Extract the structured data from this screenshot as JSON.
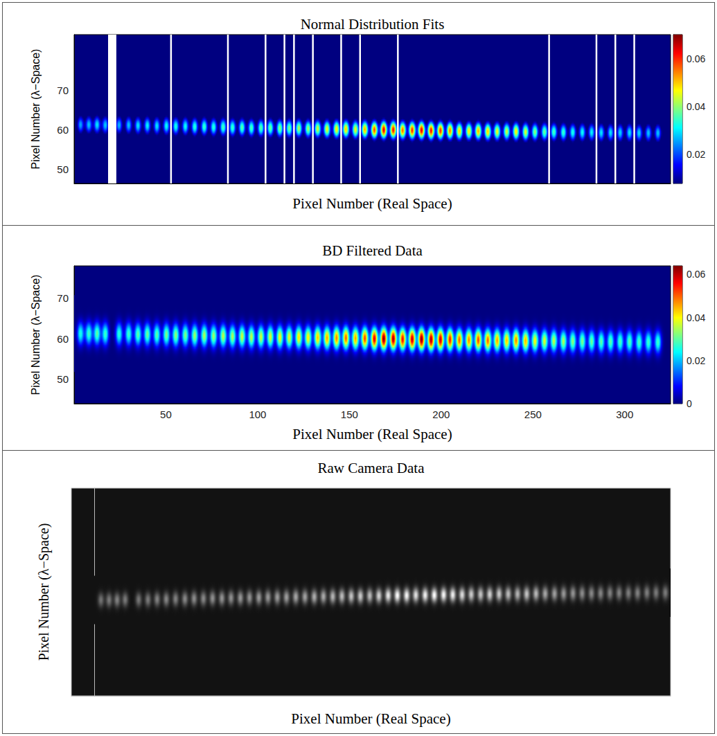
{
  "chart_data": [
    {
      "type": "heatmap",
      "title": "Normal Distribution Fits",
      "x_label": "Pixel Number (Real Space)",
      "y_label": "Pixel Number (λ−Space)",
      "xlim": [
        0,
        325
      ],
      "ylim": [
        46.5,
        84
      ],
      "yticks": [
        50,
        60,
        70
      ],
      "tick_labels": "y",
      "color": "jet",
      "color_range": [
        0.008,
        0.07
      ],
      "color_ticks": [
        0.02,
        0.04,
        0.06
      ],
      "spots": {
        "x": [
          3.5,
          8,
          12.5,
          17,
          24.5,
          29.7,
          34.8,
          39.9,
          45.1,
          50.3,
          55.4,
          60.6,
          65.7,
          70.9,
          76.0,
          81.2,
          86.3,
          91.5,
          96.6,
          101.8,
          106.9,
          112.1,
          117.2,
          122.4,
          127.5,
          132.7,
          137.8,
          143.0,
          148.1,
          153.3,
          158.4,
          163.6,
          168.7,
          173.9,
          179.0,
          184.2,
          189.3,
          194.5,
          199.6,
          204.8,
          209.9,
          215.1,
          220.2,
          225.4,
          230.5,
          235.7,
          240.8,
          246.0,
          251.1,
          256.3,
          261.4,
          266.6,
          271.7,
          276.9,
          282.0,
          287.2,
          292.3,
          297.5,
          302.6,
          307.8,
          312.9,
          318.1
        ],
        "y": [
          61.3,
          61.3,
          61.3,
          61.2,
          61.2,
          61.2,
          61.1,
          61.1,
          61.0,
          61.0,
          60.9,
          60.9,
          60.8,
          60.8,
          60.7,
          60.7,
          60.6,
          60.6,
          60.5,
          60.5,
          60.5,
          60.4,
          60.4,
          60.4,
          60.3,
          60.3,
          60.2,
          60.2,
          60.2,
          60.1,
          60.1,
          60.0,
          60.0,
          60.0,
          59.9,
          59.9,
          59.9,
          59.8,
          59.8,
          59.8,
          59.7,
          59.7,
          59.7,
          59.6,
          59.6,
          59.6,
          59.6,
          59.5,
          59.5,
          59.5,
          59.5,
          59.4,
          59.4,
          59.4,
          59.4,
          59.3,
          59.3,
          59.3,
          59.3,
          59.2,
          59.2,
          59.2
        ],
        "peak": [
          0.026,
          0.028,
          0.03,
          0.028,
          0.027,
          0.028,
          0.03,
          0.031,
          0.03,
          0.032,
          0.033,
          0.032,
          0.034,
          0.035,
          0.034,
          0.036,
          0.035,
          0.037,
          0.036,
          0.037,
          0.038,
          0.04,
          0.039,
          0.042,
          0.041,
          0.044,
          0.046,
          0.048,
          0.05,
          0.046,
          0.052,
          0.058,
          0.064,
          0.062,
          0.056,
          0.06,
          0.064,
          0.062,
          0.06,
          0.055,
          0.05,
          0.048,
          0.052,
          0.05,
          0.046,
          0.044,
          0.048,
          0.045,
          0.04,
          0.038,
          0.036,
          0.035,
          0.033,
          0.032,
          0.031,
          0.03,
          0.03,
          0.029,
          0.03,
          0.029,
          0.028,
          0.028
        ],
        "sigma_x": 1.3,
        "sigma_y": 1.5
      },
      "boundaries": [
        52.8,
        83.8,
        104.3,
        114.6,
        119.8,
        130.1,
        145.5,
        155.8,
        176.4,
        258.8,
        284.6,
        294.9,
        305.2
      ],
      "excluded": [
        [
          18.5,
          23
        ]
      ]
    },
    {
      "type": "heatmap",
      "title": "BD Filtered Data",
      "x_label": "Pixel Number (Real Space)",
      "y_label": "Pixel Number (λ−Space)",
      "xlim": [
        0,
        325
      ],
      "ylim": [
        44,
        78
      ],
      "xticks": [
        50,
        100,
        150,
        200,
        250,
        300
      ],
      "yticks": [
        50,
        60,
        70
      ],
      "color": "jet",
      "color_range": [
        0,
        0.064
      ],
      "color_ticks": [
        0,
        0.02,
        0.04,
        0.06
      ],
      "spots": {
        "x": [
          3.5,
          8,
          12.5,
          17,
          24.5,
          29.7,
          34.8,
          39.9,
          45.1,
          50.3,
          55.4,
          60.6,
          65.7,
          70.9,
          76.0,
          81.2,
          86.3,
          91.5,
          96.6,
          101.8,
          106.9,
          112.1,
          117.2,
          122.4,
          127.5,
          132.7,
          137.8,
          143.0,
          148.1,
          153.3,
          158.4,
          163.6,
          168.7,
          173.9,
          179.0,
          184.2,
          189.3,
          194.5,
          199.6,
          204.8,
          209.9,
          215.1,
          220.2,
          225.4,
          230.5,
          235.7,
          240.8,
          246.0,
          251.1,
          256.3,
          261.4,
          266.6,
          271.7,
          276.9,
          282.0,
          287.2,
          292.3,
          297.5,
          302.6,
          307.8,
          312.9,
          318.1
        ],
        "y": [
          61.3,
          61.3,
          61.3,
          61.2,
          61.2,
          61.2,
          61.1,
          61.1,
          61.0,
          61.0,
          60.9,
          60.9,
          60.8,
          60.8,
          60.7,
          60.7,
          60.6,
          60.6,
          60.5,
          60.5,
          60.5,
          60.4,
          60.4,
          60.4,
          60.3,
          60.3,
          60.2,
          60.2,
          60.2,
          60.1,
          60.1,
          60.0,
          60.0,
          60.0,
          59.9,
          59.9,
          59.9,
          59.8,
          59.8,
          59.8,
          59.7,
          59.7,
          59.7,
          59.6,
          59.6,
          59.6,
          59.6,
          59.5,
          59.5,
          59.5,
          59.5,
          59.4,
          59.4,
          59.4,
          59.4,
          59.3,
          59.3,
          59.3,
          59.3,
          59.2,
          59.2,
          59.2
        ],
        "peak": [
          0.026,
          0.028,
          0.03,
          0.028,
          0.027,
          0.028,
          0.03,
          0.031,
          0.03,
          0.032,
          0.033,
          0.032,
          0.034,
          0.035,
          0.034,
          0.036,
          0.035,
          0.037,
          0.036,
          0.037,
          0.038,
          0.04,
          0.039,
          0.042,
          0.041,
          0.044,
          0.046,
          0.048,
          0.05,
          0.046,
          0.052,
          0.058,
          0.064,
          0.062,
          0.056,
          0.06,
          0.064,
          0.062,
          0.06,
          0.055,
          0.05,
          0.048,
          0.052,
          0.05,
          0.046,
          0.044,
          0.048,
          0.045,
          0.04,
          0.038,
          0.036,
          0.035,
          0.033,
          0.032,
          0.031,
          0.03,
          0.03,
          0.029,
          0.03,
          0.029,
          0.028,
          0.028
        ],
        "sigma_x": 1.3,
        "sigma_y": 1.9
      }
    },
    {
      "type": "image",
      "title": "Raw Camera Data",
      "x_label": "Pixel Number (Real Space)",
      "y_label": "Pixel Number (λ−Space)",
      "xlim": [
        -13,
        321
      ],
      "ylim": [
        89,
        29
      ],
      "tick_labels": false,
      "color": "gray",
      "color_range": [
        0,
        0.064
      ],
      "spots": {
        "x": [
          3.5,
          8,
          12.5,
          17,
          24.5,
          29.7,
          34.8,
          39.9,
          45.1,
          50.3,
          55.4,
          60.6,
          65.7,
          70.9,
          76.0,
          81.2,
          86.3,
          91.5,
          96.6,
          101.8,
          106.9,
          112.1,
          117.2,
          122.4,
          127.5,
          132.7,
          137.8,
          143.0,
          148.1,
          153.3,
          158.4,
          163.6,
          168.7,
          173.9,
          179.0,
          184.2,
          189.3,
          194.5,
          199.6,
          204.8,
          209.9,
          215.1,
          220.2,
          225.4,
          230.5,
          235.7,
          240.8,
          246.0,
          251.1,
          256.3,
          261.4,
          266.6,
          271.7,
          276.9,
          282.0,
          287.2,
          292.3,
          297.5,
          302.6,
          307.8,
          312.9,
          318.1
        ],
        "y": [
          61.3,
          61.3,
          61.3,
          61.2,
          61.2,
          61.2,
          61.1,
          61.1,
          61.0,
          61.0,
          60.9,
          60.9,
          60.8,
          60.8,
          60.7,
          60.7,
          60.6,
          60.6,
          60.5,
          60.5,
          60.5,
          60.4,
          60.4,
          60.4,
          60.3,
          60.3,
          60.2,
          60.2,
          60.2,
          60.1,
          60.1,
          60.0,
          60.0,
          60.0,
          59.9,
          59.9,
          59.9,
          59.8,
          59.8,
          59.8,
          59.7,
          59.7,
          59.7,
          59.6,
          59.6,
          59.6,
          59.6,
          59.5,
          59.5,
          59.5,
          59.5,
          59.4,
          59.4,
          59.4,
          59.4,
          59.3,
          59.3,
          59.3,
          59.3,
          59.2,
          59.2,
          59.2
        ],
        "peak": [
          0.026,
          0.028,
          0.03,
          0.028,
          0.027,
          0.028,
          0.03,
          0.031,
          0.03,
          0.032,
          0.033,
          0.032,
          0.034,
          0.035,
          0.034,
          0.036,
          0.035,
          0.037,
          0.036,
          0.037,
          0.038,
          0.04,
          0.039,
          0.042,
          0.041,
          0.044,
          0.046,
          0.048,
          0.05,
          0.046,
          0.052,
          0.058,
          0.064,
          0.062,
          0.056,
          0.06,
          0.064,
          0.062,
          0.06,
          0.055,
          0.05,
          0.048,
          0.052,
          0.05,
          0.046,
          0.044,
          0.048,
          0.045,
          0.04,
          0.038,
          0.036,
          0.035,
          0.033,
          0.032,
          0.031,
          0.03,
          0.03,
          0.029,
          0.03,
          0.029,
          0.028,
          0.028
        ],
        "sigma_x": 1.2,
        "sigma_y": 1.4
      }
    }
  ]
}
